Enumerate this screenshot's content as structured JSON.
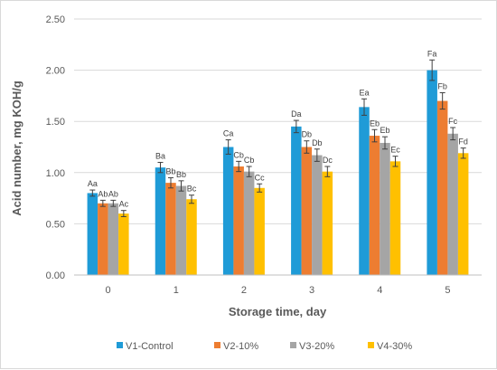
{
  "chart_data": {
    "type": "bar",
    "xlabel": "Storage time, day",
    "ylabel": "Acid number, mg KOH/g",
    "ylim": [
      0,
      2.5
    ],
    "yticks": [
      "0.00",
      "0.50",
      "1.00",
      "1.50",
      "2.00",
      "2.50"
    ],
    "categories": [
      "0",
      "1",
      "2",
      "3",
      "4",
      "5"
    ],
    "grid": true,
    "legend_position": "bottom",
    "series": [
      {
        "name": "V1-Control",
        "color": "#1f9bd7",
        "values": [
          0.8,
          1.05,
          1.25,
          1.45,
          1.64,
          2.0
        ],
        "errors": [
          0.03,
          0.05,
          0.07,
          0.06,
          0.08,
          0.1
        ],
        "labels": [
          "Aa",
          "Ba",
          "Ca",
          "Da",
          "Ea",
          "Fa"
        ]
      },
      {
        "name": "V2-10%",
        "color": "#ed7d31",
        "values": [
          0.7,
          0.9,
          1.06,
          1.25,
          1.36,
          1.7
        ],
        "errors": [
          0.03,
          0.05,
          0.05,
          0.06,
          0.06,
          0.08
        ],
        "labels": [
          "Ab",
          "Bb",
          "Cb",
          "Db",
          "Eb",
          "Fb"
        ]
      },
      {
        "name": "V3-20%",
        "color": "#a5a5a5",
        "values": [
          0.7,
          0.87,
          1.01,
          1.17,
          1.29,
          1.38
        ],
        "errors": [
          0.03,
          0.05,
          0.05,
          0.06,
          0.06,
          0.06
        ],
        "labels": [
          "Ab",
          "Bb",
          "Cb",
          "Db",
          "Eb",
          "Fc"
        ]
      },
      {
        "name": "V4-30%",
        "color": "#ffc000",
        "values": [
          0.6,
          0.74,
          0.85,
          1.01,
          1.11,
          1.19
        ],
        "errors": [
          0.03,
          0.04,
          0.04,
          0.05,
          0.05,
          0.05
        ],
        "labels": [
          "Ac",
          "Bc",
          "Cc",
          "Dc",
          "Ec",
          "Fd"
        ]
      }
    ]
  }
}
